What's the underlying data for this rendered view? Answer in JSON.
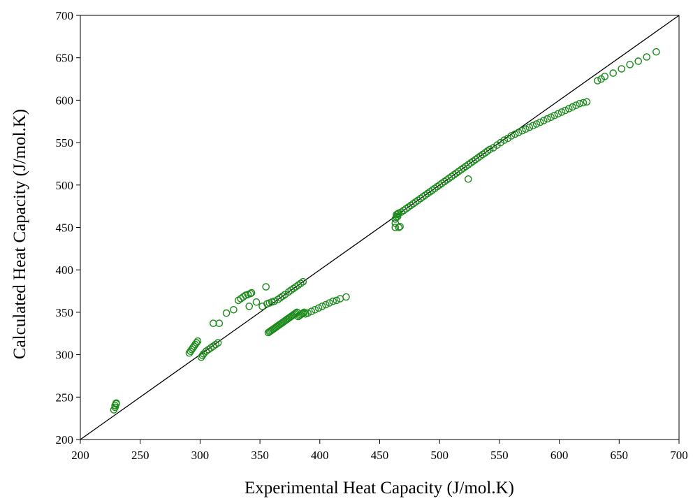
{
  "chart_data": {
    "type": "scatter",
    "title": "",
    "xlabel": "Experimental Heat Capacity (J/mol.K)",
    "ylabel": "Calculated Heat Capacity (J/mol.K)",
    "xlim": [
      200,
      700
    ],
    "ylim": [
      200,
      700
    ],
    "x_ticks": [
      "200",
      "250",
      "300",
      "350",
      "400",
      "450",
      "500",
      "550",
      "600",
      "650",
      "700"
    ],
    "y_ticks": [
      "200",
      "250",
      "300",
      "350",
      "400",
      "450",
      "500",
      "550",
      "600",
      "650",
      "700"
    ],
    "grid": false,
    "legend": "none",
    "reference_line": {
      "x": [
        200,
        700
      ],
      "y": [
        200,
        700
      ],
      "color": "#000000"
    },
    "marker": "open-circle",
    "marker_color": "#1a8a1a",
    "series": [
      {
        "x": [
          228,
          229,
          229,
          230,
          230,
          291,
          292,
          293,
          294,
          295,
          296,
          297,
          298,
          301,
          302,
          303,
          305,
          307,
          309,
          311,
          313,
          315,
          311,
          316,
          322,
          328,
          332,
          334,
          336,
          338,
          340,
          342,
          343,
          341,
          347,
          352,
          355,
          356,
          358,
          360,
          362,
          365,
          367,
          369,
          371,
          374,
          376,
          378,
          380,
          382,
          384,
          386,
          357,
          358,
          359,
          360,
          361,
          362,
          363,
          364,
          365,
          366,
          367,
          368,
          369,
          370,
          371,
          372,
          373,
          374,
          375,
          376,
          377,
          378,
          379,
          380,
          381,
          382,
          383,
          384,
          385,
          386,
          387,
          388,
          390,
          393,
          396,
          399,
          402,
          405,
          408,
          411,
          414,
          417,
          422,
          463,
          463,
          463,
          464,
          464,
          465,
          465,
          466,
          466,
          467,
          468,
          470,
          472,
          474,
          476,
          478,
          480,
          482,
          484,
          486,
          488,
          490,
          492,
          494,
          496,
          498,
          500,
          502,
          504,
          506,
          508,
          510,
          512,
          514,
          516,
          518,
          520,
          522,
          524,
          526,
          528,
          530,
          532,
          534,
          536,
          538,
          540,
          542,
          524,
          545,
          548,
          551,
          554,
          557,
          560,
          563,
          566,
          569,
          572,
          575,
          578,
          581,
          584,
          587,
          590,
          593,
          596,
          599,
          602,
          605,
          608,
          611,
          614,
          617,
          620,
          623,
          632,
          635,
          638,
          645,
          652,
          659,
          666,
          673,
          681
        ],
        "y": [
          235,
          238,
          240,
          242,
          243,
          302,
          304,
          306,
          308,
          310,
          312,
          314,
          316,
          297,
          299,
          301,
          304,
          306,
          308,
          310,
          312,
          314,
          337,
          337,
          349,
          353,
          364,
          366,
          368,
          370,
          371,
          372,
          373,
          357,
          362,
          357,
          380,
          360,
          361,
          362,
          363,
          365,
          367,
          369,
          371,
          374,
          376,
          378,
          380,
          382,
          384,
          386,
          326,
          327,
          328,
          329,
          330,
          331,
          332,
          333,
          334,
          335,
          336,
          337,
          338,
          339,
          340,
          341,
          342,
          343,
          344,
          345,
          346,
          347,
          348,
          349,
          350,
          345,
          346,
          347,
          348,
          349,
          350,
          348,
          349,
          351,
          353,
          355,
          357,
          359,
          361,
          363,
          364,
          366,
          368,
          450,
          455,
          460,
          465,
          462,
          466,
          463,
          467,
          450,
          451,
          468,
          470,
          472,
          474,
          476,
          478,
          480,
          482,
          484,
          486,
          488,
          490,
          492,
          494,
          496,
          498,
          500,
          502,
          504,
          506,
          508,
          510,
          512,
          514,
          516,
          518,
          520,
          522,
          524,
          526,
          528,
          530,
          532,
          534,
          536,
          538,
          540,
          542,
          507,
          544,
          547,
          550,
          553,
          555,
          558,
          560,
          562,
          564,
          566,
          568,
          570,
          572,
          574,
          576,
          578,
          580,
          582,
          584,
          586,
          588,
          590,
          592,
          594,
          596,
          597,
          598,
          623,
          625,
          628,
          632,
          637,
          642,
          646,
          651,
          657
        ]
      }
    ]
  }
}
